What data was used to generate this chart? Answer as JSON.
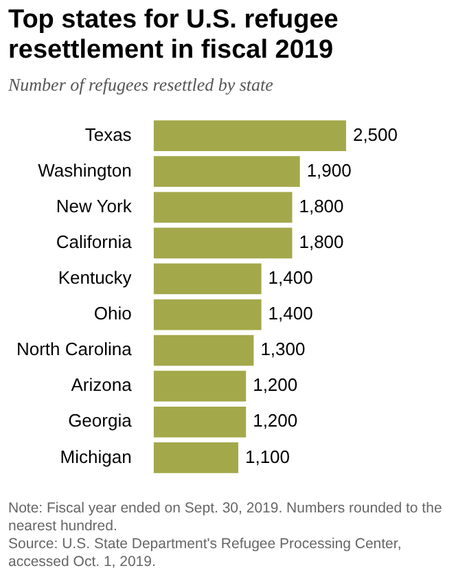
{
  "chart_data": {
    "type": "bar",
    "orientation": "horizontal",
    "title": "Top states for U.S. refugee resettlement in fiscal 2019",
    "subtitle": "Number of refugees resettled by state",
    "categories": [
      "Texas",
      "Washington",
      "New York",
      "California",
      "Kentucky",
      "Ohio",
      "North Carolina",
      "Arizona",
      "Georgia",
      "Michigan"
    ],
    "values": [
      2500,
      1900,
      1800,
      1800,
      1400,
      1400,
      1300,
      1200,
      1200,
      1100
    ],
    "value_labels": [
      "2,500",
      "1,900",
      "1,800",
      "1,800",
      "1,400",
      "1,400",
      "1,300",
      "1,200",
      "1,200",
      "1,100"
    ],
    "color": "#a3a84b",
    "grid": false,
    "legend": false,
    "tick_labels": "y",
    "annotations": [
      "Note: Fiscal year ended on Sept. 30, 2019. Numbers rounded to the nearest hundred.",
      "Source: U.S. State Department's Refugee Processing Center, accessed Oct. 1, 2019."
    ]
  }
}
